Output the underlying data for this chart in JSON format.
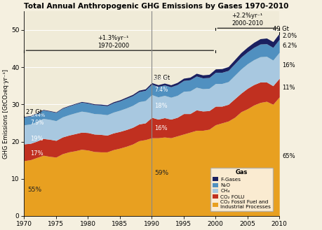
{
  "title": "Total Annual Anthropogenic GHG Emissions by Gases 1970-2010",
  "ylabel": "GHG Emissions [GtCO₂eq·yr⁻¹]",
  "years": [
    1970,
    1971,
    1972,
    1973,
    1974,
    1975,
    1976,
    1977,
    1978,
    1979,
    1980,
    1981,
    1982,
    1983,
    1984,
    1985,
    1986,
    1987,
    1988,
    1989,
    1990,
    1991,
    1992,
    1993,
    1994,
    1995,
    1996,
    1997,
    1998,
    1999,
    2000,
    2001,
    2002,
    2003,
    2004,
    2005,
    2006,
    2007,
    2008,
    2009,
    2010
  ],
  "co2_fossil": [
    14.85,
    15.1,
    15.7,
    16.3,
    16.0,
    15.8,
    16.7,
    17.2,
    17.5,
    17.9,
    17.7,
    17.3,
    17.2,
    17.2,
    17.8,
    18.2,
    18.7,
    19.3,
    20.2,
    20.5,
    21.0,
    21.0,
    21.2,
    21.0,
    21.5,
    22.0,
    22.5,
    23.0,
    23.0,
    23.3,
    24.5,
    25.0,
    25.5,
    26.5,
    28.0,
    28.8,
    29.8,
    30.5,
    30.8,
    30.0,
    32.0
  ],
  "co2_folu": [
    4.5,
    4.4,
    4.4,
    4.5,
    4.6,
    4.5,
    4.5,
    4.5,
    4.6,
    4.6,
    4.7,
    4.7,
    4.7,
    4.5,
    4.5,
    4.5,
    4.5,
    4.5,
    4.5,
    4.5,
    5.5,
    5.0,
    5.2,
    5.0,
    5.0,
    5.5,
    5.0,
    5.5,
    5.2,
    5.0,
    5.0,
    4.5,
    4.5,
    5.0,
    5.0,
    5.5,
    5.5,
    5.5,
    5.2,
    5.0,
    5.0
  ],
  "ch4": [
    5.13,
    5.2,
    5.3,
    5.4,
    5.35,
    5.3,
    5.4,
    5.5,
    5.6,
    5.65,
    5.5,
    5.5,
    5.5,
    5.5,
    5.6,
    5.7,
    5.8,
    5.9,
    6.0,
    6.0,
    6.1,
    6.0,
    6.0,
    5.9,
    5.9,
    6.0,
    6.1,
    6.1,
    6.0,
    6.0,
    6.1,
    6.1,
    6.1,
    6.3,
    6.5,
    6.6,
    6.7,
    6.8,
    6.9,
    6.9,
    7.0
  ],
  "n2o": [
    2.13,
    2.15,
    2.2,
    2.25,
    2.2,
    2.2,
    2.3,
    2.3,
    2.35,
    2.4,
    2.4,
    2.4,
    2.4,
    2.4,
    2.5,
    2.5,
    2.6,
    2.6,
    2.7,
    2.75,
    2.8,
    2.8,
    2.8,
    2.8,
    2.9,
    2.9,
    3.0,
    3.0,
    2.9,
    2.9,
    3.0,
    3.0,
    3.0,
    3.1,
    3.2,
    3.2,
    3.3,
    3.4,
    3.4,
    3.4,
    3.5
  ],
  "fgases": [
    0.12,
    0.13,
    0.14,
    0.15,
    0.15,
    0.15,
    0.16,
    0.17,
    0.18,
    0.19,
    0.2,
    0.22,
    0.24,
    0.25,
    0.27,
    0.29,
    0.32,
    0.35,
    0.38,
    0.4,
    0.43,
    0.46,
    0.5,
    0.54,
    0.58,
    0.62,
    0.68,
    0.74,
    0.8,
    0.86,
    0.92,
    0.98,
    1.05,
    1.12,
    1.2,
    1.28,
    1.36,
    1.44,
    1.52,
    1.56,
    1.6
  ],
  "colors": {
    "co2_fossil": "#E8A020",
    "co2_folu": "#C03020",
    "ch4": "#A8C8E0",
    "n2o": "#5090C0",
    "fgases": "#1A2060"
  },
  "background_color": "#F5F0E0",
  "plot_bg": "#F0EBD8",
  "ylim": [
    0,
    55
  ],
  "yticks": [
    0,
    10,
    20,
    30,
    40,
    50
  ],
  "xticks": [
    1970,
    1975,
    1980,
    1985,
    1990,
    1995,
    2000,
    2005,
    2010
  ]
}
